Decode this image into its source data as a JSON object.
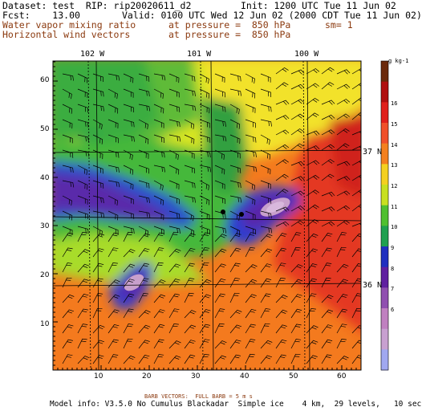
{
  "header": {
    "dataset": "Dataset: test  RIP: rip20020611_d2",
    "init": "Init: 1200 UTC Tue 11 Jun 02",
    "fcst": "Fcst:    13.00",
    "valid": "Valid: 0100 UTC Wed 12 Jun 02 (2000 CDT Tue 11 Jun 02)",
    "field1": "Water vapor mixing ratio",
    "field1_pressure": "at pressure =  850 hPa",
    "field1_sm": "sm= 1",
    "field2": "Horizontal wind vectors",
    "field2_pressure": "at pressure =  850 hPa"
  },
  "map": {
    "lon_labels": [
      "102 W",
      "101 W",
      "100 W"
    ],
    "lat_labels": [
      "37 N",
      "36 N"
    ],
    "x_ticks": [
      "10",
      "20",
      "30",
      "40",
      "50",
      "60"
    ],
    "y_ticks": [
      "10",
      "20",
      "30",
      "40",
      "50",
      "60"
    ],
    "station_dots": 2
  },
  "colorbar": {
    "unit": "g kg-1",
    "labels": [
      "16",
      "15",
      "14",
      "13",
      "12",
      "11",
      "10",
      "9",
      "8",
      "7",
      "6"
    ],
    "colors": [
      "#6b2a0c",
      "#b01010",
      "#e0201c",
      "#f0502a",
      "#f4801e",
      "#f4d020",
      "#c8e020",
      "#50c030",
      "#20a050",
      "#2030c0",
      "#6020a0",
      "#9050b0",
      "#c080c0",
      "#c8a0d0",
      "#a0a8f0"
    ]
  },
  "footer": {
    "barb_note": "BARB VECTORS:  FULL BARB = 5 m s",
    "model_info": "Model info: V3.5.0 No Cumulus Blackadar  Simple ice    4 km,  29 levels,   10 sec"
  }
}
